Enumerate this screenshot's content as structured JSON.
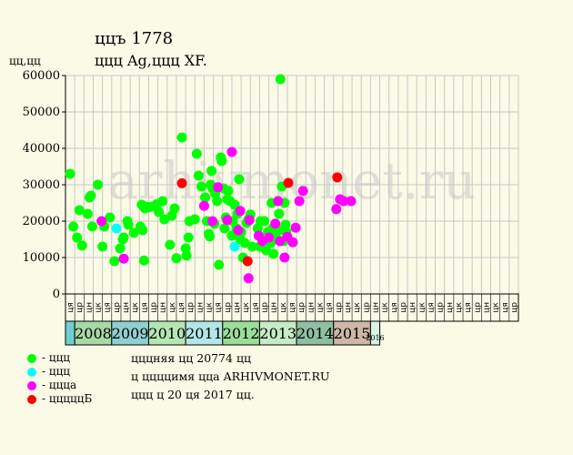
{
  "header": {
    "title": "ццъ 1778",
    "subtitle": "ццц Ag,ццц XF.",
    "unit": "цц,цц"
  },
  "watermark": "arhivmonet.ru",
  "legend": [
    {
      "label": "- ццц",
      "color": "#00ff00"
    },
    {
      "label": "- ццц",
      "color": "#00ffff"
    },
    {
      "label": "- цццa",
      "color": "#ff00ff"
    },
    {
      "label": "- цццццБ",
      "color": "#ff0000"
    }
  ],
  "footnotes": [
    "цццняя цц 20774 цц",
    "ц ццццимя цца ARHIVMONET.RU",
    "ццц ц 20 ця 2017 цц."
  ],
  "chart_data": {
    "type": "scatter",
    "ylim": [
      0,
      60000
    ],
    "yticks": [
      0,
      10000,
      20000,
      30000,
      40000,
      50000,
      60000
    ],
    "grid": true,
    "legend_placement": "bottom-left",
    "colors": {
      "green": "#00ff00",
      "cyan": "#00ffff",
      "magenta": "#ff00ff",
      "red": "#ff0000"
    },
    "month_labels": [
      "ця",
      "цр",
      "цн",
      "цк",
      "ця",
      "цр",
      "цн",
      "цк",
      "ця",
      "цр",
      "цн",
      "цк",
      "ця",
      "цр",
      "цн",
      "цк",
      "ця",
      "цр",
      "цн",
      "цк",
      "ця",
      "цр",
      "цн",
      "цк",
      "ця",
      "цр",
      "цн",
      "цк",
      "ця",
      "цр",
      "цн",
      "цк",
      "цр",
      "цн",
      "цк",
      "ця",
      "цр",
      "цн",
      "цк",
      "ця",
      "цр",
      "цн",
      "цк",
      "ця",
      "цр",
      "цн",
      "цк",
      "ця",
      "цр"
    ],
    "years": [
      {
        "label": "",
        "start": 0,
        "end": 1,
        "color": "#6fcfcf"
      },
      {
        "label": "2008",
        "start": 1,
        "end": 5,
        "color": "#a6d9a6"
      },
      {
        "label": "2009",
        "start": 5,
        "end": 9,
        "color": "#8fcfcf"
      },
      {
        "label": "2010",
        "start": 9,
        "end": 13,
        "color": "#b3e6b3"
      },
      {
        "label": "2011",
        "start": 13,
        "end": 17,
        "color": "#b3e6e6"
      },
      {
        "label": "2012",
        "start": 17,
        "end": 21,
        "color": "#99dd99"
      },
      {
        "label": "2013",
        "start": 21,
        "end": 25,
        "color": "#c6ebc6"
      },
      {
        "label": "2014",
        "start": 25,
        "end": 29,
        "color": "#8fbfa0"
      },
      {
        "label": "2015",
        "start": 29,
        "end": 33,
        "color": "#cdb8a6"
      },
      {
        "label": "2016",
        "start": 33,
        "end": 34,
        "color": "#d9f2e6"
      }
    ],
    "series": [
      {
        "color": "green",
        "points": [
          [
            0.0,
            33000
          ],
          [
            0.35,
            18500
          ],
          [
            0.75,
            15500
          ],
          [
            1.0,
            23000
          ],
          [
            1.3,
            13300
          ],
          [
            1.9,
            22000
          ],
          [
            2.1,
            26500
          ],
          [
            2.25,
            27000
          ],
          [
            2.4,
            18500
          ],
          [
            3.0,
            30000
          ],
          [
            3.5,
            13000
          ],
          [
            3.7,
            18500
          ],
          [
            4.3,
            21000
          ],
          [
            4.8,
            9000
          ],
          [
            5.4,
            12500
          ],
          [
            5.7,
            15000
          ],
          [
            5.8,
            15500
          ],
          [
            6.2,
            20000
          ],
          [
            6.3,
            19000
          ],
          [
            6.9,
            16800
          ],
          [
            7.6,
            18500
          ],
          [
            7.75,
            24500
          ],
          [
            7.85,
            17500
          ],
          [
            8.0,
            9200
          ],
          [
            8.1,
            23500
          ],
          [
            8.2,
            24000
          ],
          [
            8.5,
            23800
          ],
          [
            8.9,
            24000
          ],
          [
            9.4,
            24700
          ],
          [
            9.6,
            22500
          ],
          [
            10.0,
            25500
          ],
          [
            10.2,
            20500
          ],
          [
            10.8,
            13500
          ],
          [
            11.0,
            21500
          ],
          [
            11.3,
            23500
          ],
          [
            11.5,
            9800
          ],
          [
            12.1,
            43000
          ],
          [
            12.5,
            12500
          ],
          [
            12.6,
            10500
          ],
          [
            12.8,
            15500
          ],
          [
            12.9,
            20000
          ],
          [
            13.5,
            20500
          ],
          [
            13.7,
            38500
          ],
          [
            13.9,
            32500
          ],
          [
            14.2,
            29500
          ],
          [
            14.6,
            26500
          ],
          [
            14.8,
            20000
          ],
          [
            15.0,
            16500
          ],
          [
            15.1,
            15800
          ],
          [
            15.2,
            30000
          ],
          [
            15.3,
            33800
          ],
          [
            15.4,
            29000
          ],
          [
            15.6,
            19300
          ],
          [
            15.7,
            27500
          ],
          [
            15.9,
            25500
          ],
          [
            16.1,
            8000
          ],
          [
            16.3,
            37500
          ],
          [
            16.4,
            36500
          ],
          [
            16.6,
            29000
          ],
          [
            16.7,
            18000
          ],
          [
            16.85,
            21000
          ],
          [
            17.0,
            26000
          ],
          [
            17.1,
            28300
          ],
          [
            17.3,
            25500
          ],
          [
            17.5,
            16000
          ],
          [
            17.6,
            20000
          ],
          [
            17.8,
            24500
          ],
          [
            18.0,
            18000
          ],
          [
            18.1,
            22000
          ],
          [
            18.3,
            31500
          ],
          [
            18.4,
            15000
          ],
          [
            18.5,
            17000
          ],
          [
            18.7,
            10000
          ],
          [
            18.9,
            14000
          ],
          [
            19.1,
            19500
          ],
          [
            19.3,
            20500
          ],
          [
            19.5,
            21800
          ],
          [
            19.7,
            13000
          ],
          [
            20.3,
            18000
          ],
          [
            20.5,
            13000
          ],
          [
            20.6,
            20000
          ],
          [
            21.0,
            20000
          ],
          [
            21.2,
            12000
          ],
          [
            21.4,
            17000
          ],
          [
            21.7,
            14000
          ],
          [
            21.8,
            25000
          ],
          [
            21.9,
            18000
          ],
          [
            22.0,
            11000
          ],
          [
            22.2,
            16500
          ],
          [
            22.4,
            15000
          ],
          [
            22.6,
            22000
          ],
          [
            22.75,
            59000
          ],
          [
            22.9,
            29500
          ],
          [
            23.0,
            17500
          ],
          [
            23.1,
            14500
          ],
          [
            23.2,
            25000
          ],
          [
            23.3,
            19000
          ],
          [
            23.4,
            17000
          ]
        ]
      },
      {
        "color": "cyan",
        "points": [
          [
            5.0,
            18000
          ],
          [
            17.8,
            13000
          ]
        ]
      },
      {
        "color": "magenta",
        "points": [
          [
            3.4,
            20000
          ],
          [
            5.8,
            9700
          ],
          [
            14.5,
            24200
          ],
          [
            15.4,
            20000
          ],
          [
            16.0,
            29300
          ],
          [
            17.0,
            20300
          ],
          [
            17.5,
            39000
          ],
          [
            18.2,
            17500
          ],
          [
            18.4,
            22800
          ],
          [
            19.3,
            4300
          ],
          [
            19.4,
            20300
          ],
          [
            20.4,
            16000
          ],
          [
            20.8,
            14500
          ],
          [
            21.5,
            15500
          ],
          [
            22.2,
            19300
          ],
          [
            22.5,
            25500
          ],
          [
            22.7,
            14500
          ],
          [
            23.2,
            10000
          ],
          [
            23.5,
            15700
          ],
          [
            24.1,
            14200
          ],
          [
            24.4,
            18200
          ],
          [
            24.8,
            25500
          ],
          [
            25.2,
            28300
          ],
          [
            28.8,
            23300
          ],
          [
            29.2,
            26000
          ],
          [
            29.6,
            25500
          ],
          [
            30.4,
            25500
          ]
        ]
      },
      {
        "color": "red",
        "points": [
          [
            12.1,
            30400
          ],
          [
            19.2,
            9000
          ],
          [
            23.6,
            30500
          ],
          [
            28.9,
            32000
          ]
        ]
      }
    ]
  }
}
